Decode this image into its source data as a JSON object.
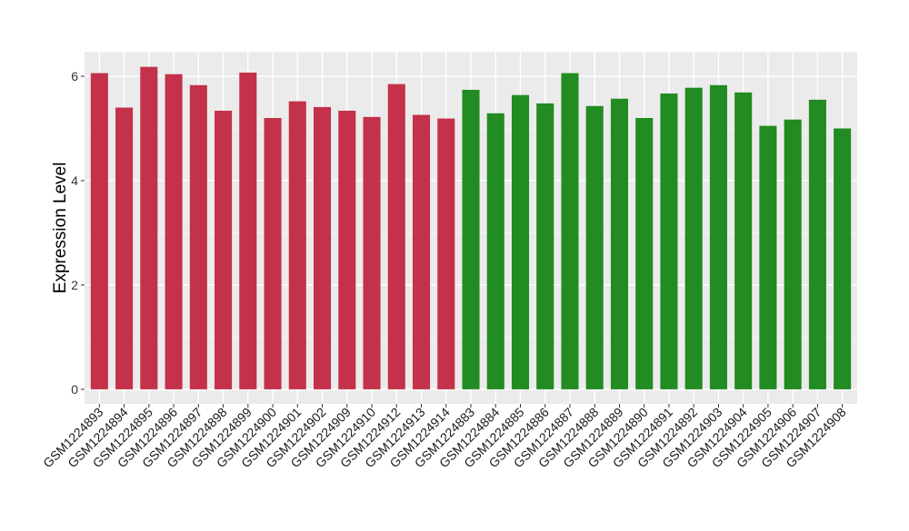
{
  "chart_data": {
    "type": "bar",
    "title": "",
    "xlabel": "",
    "ylabel": "Expression Level",
    "ylim": [
      -0.28,
      6.47
    ],
    "yticks": [
      0,
      2,
      4,
      6
    ],
    "grid": true,
    "legend": "none",
    "categories": [
      "GSM1224893",
      "GSM1224894",
      "GSM1224895",
      "GSM1224896",
      "GSM1224897",
      "GSM1224898",
      "GSM1224899",
      "GSM1224900",
      "GSM1224901",
      "GSM1224902",
      "GSM1224909",
      "GSM1224910",
      "GSM1224912",
      "GSM1224913",
      "GSM1224914",
      "GSM1224883",
      "GSM1224884",
      "GSM1224885",
      "GSM1224886",
      "GSM1224887",
      "GSM1224888",
      "GSM1224889",
      "GSM1224890",
      "GSM1224891",
      "GSM1224892",
      "GSM1224903",
      "GSM1224904",
      "GSM1224905",
      "GSM1224906",
      "GSM1224907",
      "GSM1224908"
    ],
    "values": [
      6.06,
      5.4,
      6.18,
      6.04,
      5.83,
      5.34,
      6.07,
      5.2,
      5.52,
      5.41,
      5.34,
      5.22,
      5.85,
      5.26,
      5.19,
      5.74,
      5.29,
      5.64,
      5.48,
      6.06,
      5.43,
      5.57,
      5.2,
      5.67,
      5.78,
      5.83,
      5.69,
      5.05,
      5.17,
      5.55,
      5.0
    ],
    "groups": [
      0,
      0,
      0,
      0,
      0,
      0,
      0,
      0,
      0,
      0,
      0,
      0,
      0,
      0,
      0,
      1,
      1,
      1,
      1,
      1,
      1,
      1,
      1,
      1,
      1,
      1,
      1,
      1,
      1,
      1,
      1
    ],
    "group_colors": [
      "#C3314A",
      "#228B22"
    ]
  }
}
